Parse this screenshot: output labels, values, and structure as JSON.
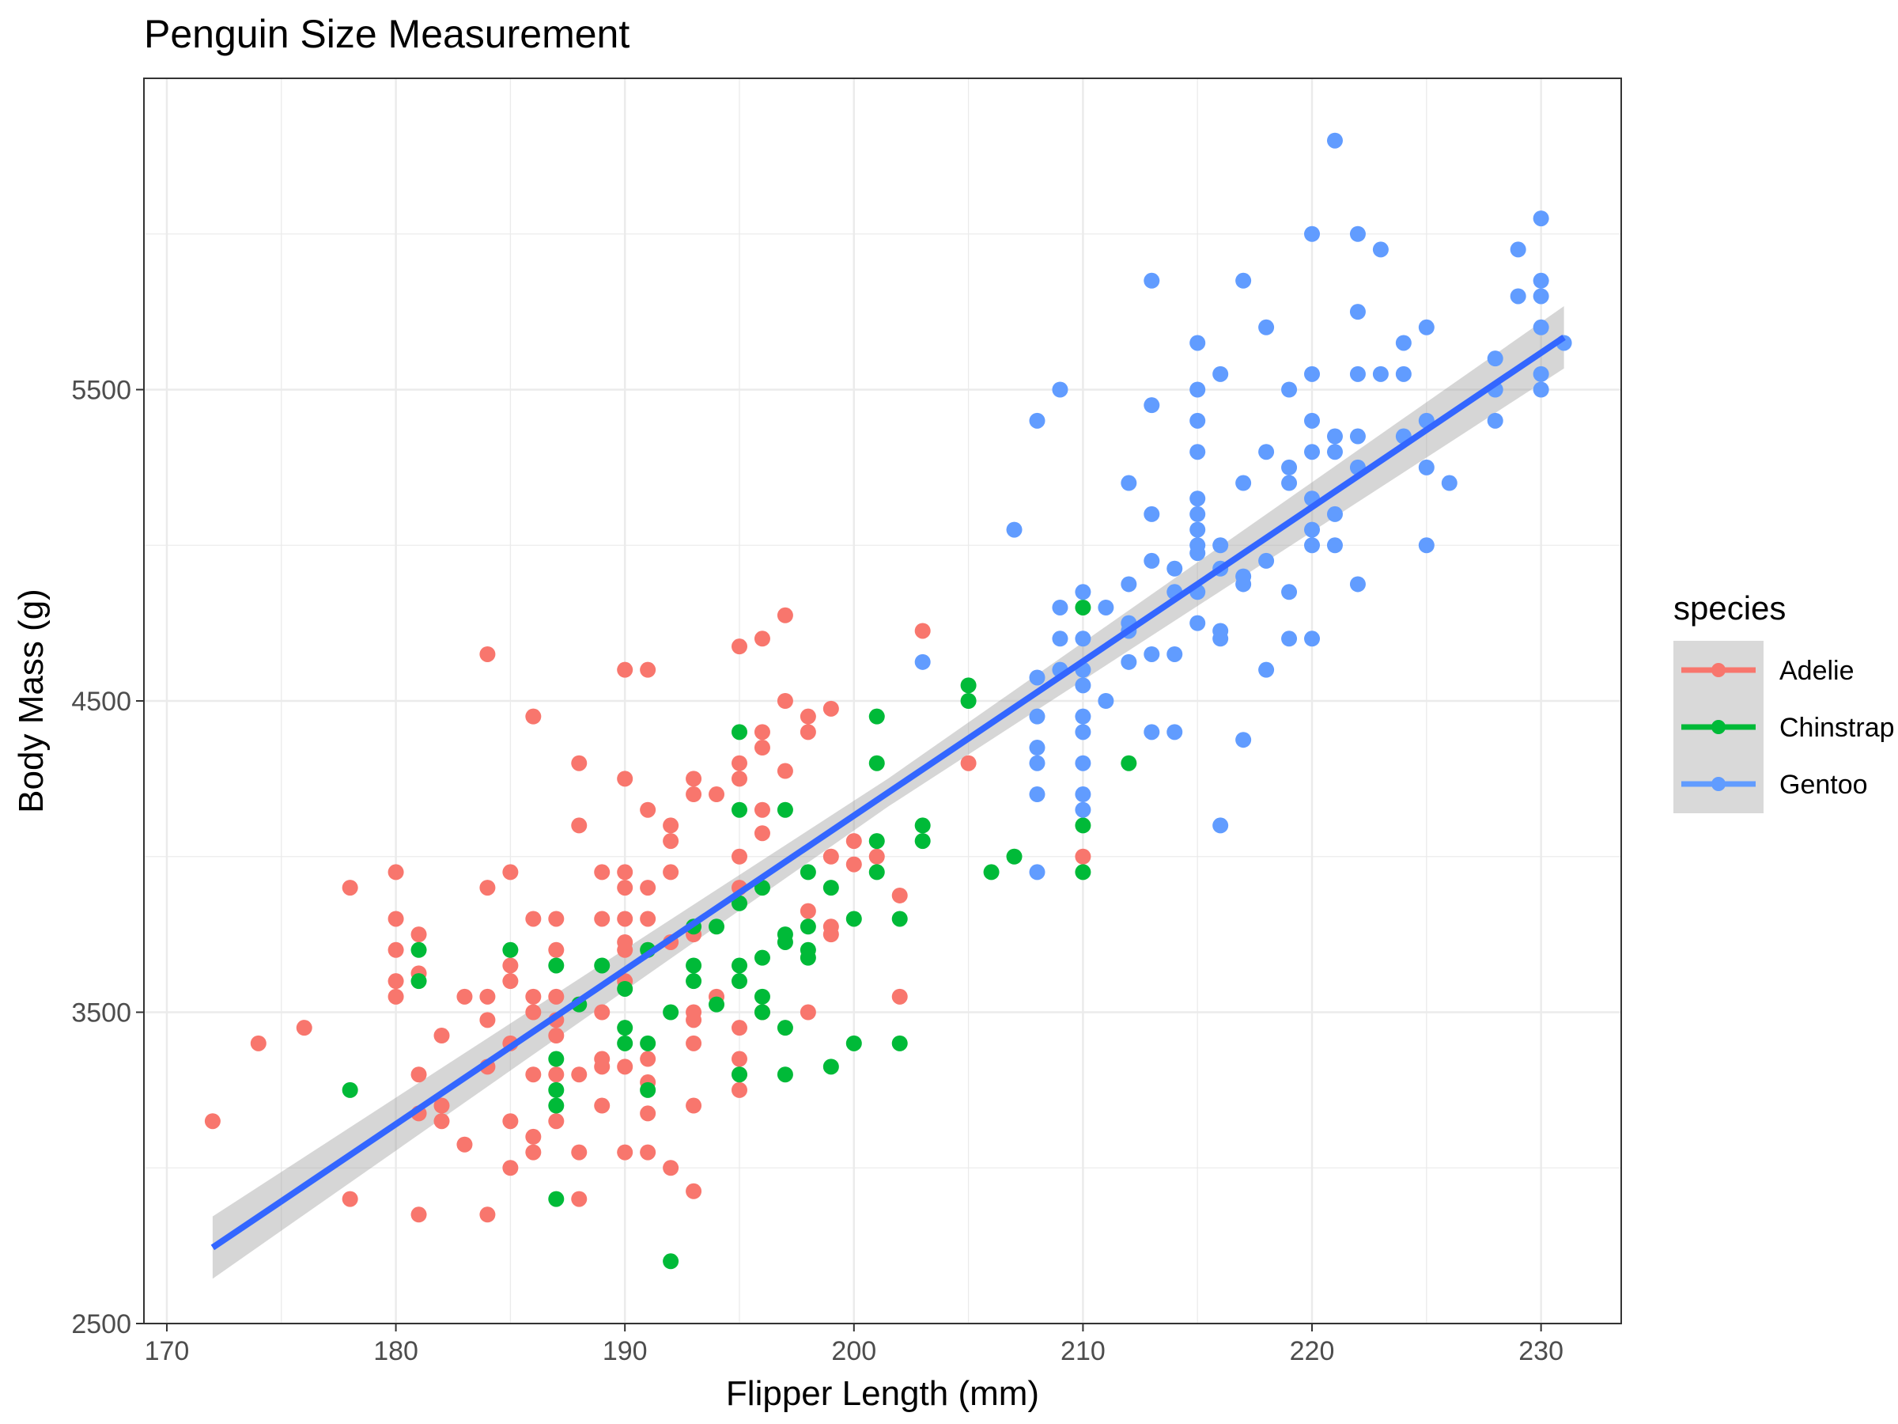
{
  "chart_data": {
    "type": "scatter",
    "title": "Penguin Size Measurement",
    "xlabel": "Flipper Length (mm)",
    "ylabel": "Body Mass (g)",
    "xlim": [
      169,
      233.5
    ],
    "ylim": [
      2500,
      6500
    ],
    "x_ticks": [
      170,
      180,
      190,
      200,
      210,
      220,
      230
    ],
    "y_ticks": [
      2500,
      3500,
      4500,
      5500
    ],
    "x_tick_labels": [
      "170",
      "180",
      "190",
      "200",
      "210",
      "220",
      "230"
    ],
    "y_tick_labels": [
      "2500",
      "3500",
      "4500",
      "5500"
    ],
    "grid": true,
    "legend": {
      "title": "species",
      "placement": "right"
    },
    "series": [
      {
        "name": "Adelie",
        "color": "#F8766D",
        "points": [
          [
            172,
            3150
          ],
          [
            174,
            3400
          ],
          [
            176,
            3450
          ],
          [
            178,
            2900
          ],
          [
            178,
            3900
          ],
          [
            180,
            3550
          ],
          [
            180,
            3600
          ],
          [
            180,
            3700
          ],
          [
            180,
            3800
          ],
          [
            180,
            3950
          ],
          [
            181,
            2850
          ],
          [
            181,
            3175
          ],
          [
            181,
            3300
          ],
          [
            181,
            3625
          ],
          [
            181,
            3750
          ],
          [
            182,
            3150
          ],
          [
            182,
            3200
          ],
          [
            182,
            3425
          ],
          [
            183,
            3075
          ],
          [
            183,
            3550
          ],
          [
            184,
            2850
          ],
          [
            184,
            3325
          ],
          [
            184,
            3475
          ],
          [
            184,
            3550
          ],
          [
            184,
            3900
          ],
          [
            184,
            4650
          ],
          [
            185,
            3000
          ],
          [
            185,
            3150
          ],
          [
            185,
            3400
          ],
          [
            185,
            3600
          ],
          [
            185,
            3650
          ],
          [
            185,
            3950
          ],
          [
            186,
            3050
          ],
          [
            186,
            3100
          ],
          [
            186,
            3300
          ],
          [
            186,
            3500
          ],
          [
            186,
            3550
          ],
          [
            186,
            3800
          ],
          [
            186,
            4450
          ],
          [
            187,
            3150
          ],
          [
            187,
            3300
          ],
          [
            187,
            3425
          ],
          [
            187,
            3475
          ],
          [
            187,
            3550
          ],
          [
            187,
            3700
          ],
          [
            187,
            3800
          ],
          [
            188,
            2900
          ],
          [
            188,
            3050
          ],
          [
            188,
            3300
          ],
          [
            188,
            4100
          ],
          [
            188,
            4300
          ],
          [
            189,
            3200
          ],
          [
            189,
            3325
          ],
          [
            189,
            3350
          ],
          [
            189,
            3500
          ],
          [
            189,
            3800
          ],
          [
            189,
            3950
          ],
          [
            190,
            3050
          ],
          [
            190,
            3325
          ],
          [
            190,
            3600
          ],
          [
            190,
            3700
          ],
          [
            190,
            3725
          ],
          [
            190,
            3800
          ],
          [
            190,
            3900
          ],
          [
            190,
            3950
          ],
          [
            190,
            4250
          ],
          [
            190,
            4600
          ],
          [
            191,
            3050
          ],
          [
            191,
            3175
          ],
          [
            191,
            3275
          ],
          [
            191,
            3350
          ],
          [
            191,
            3800
          ],
          [
            191,
            3900
          ],
          [
            191,
            4150
          ],
          [
            191,
            4600
          ],
          [
            192,
            3000
          ],
          [
            192,
            3725
          ],
          [
            192,
            3950
          ],
          [
            192,
            4050
          ],
          [
            192,
            4100
          ],
          [
            193,
            2925
          ],
          [
            193,
            3200
          ],
          [
            193,
            3400
          ],
          [
            193,
            3475
          ],
          [
            193,
            3500
          ],
          [
            193,
            3750
          ],
          [
            193,
            4200
          ],
          [
            193,
            4250
          ],
          [
            194,
            3550
          ],
          [
            194,
            4200
          ],
          [
            195,
            3250
          ],
          [
            195,
            3300
          ],
          [
            195,
            3350
          ],
          [
            195,
            3450
          ],
          [
            195,
            3900
          ],
          [
            195,
            4000
          ],
          [
            195,
            4250
          ],
          [
            195,
            4300
          ],
          [
            195,
            4675
          ],
          [
            196,
            3500
          ],
          [
            196,
            4075
          ],
          [
            196,
            4150
          ],
          [
            196,
            4350
          ],
          [
            196,
            4400
          ],
          [
            196,
            4700
          ],
          [
            197,
            4275
          ],
          [
            197,
            4500
          ],
          [
            197,
            4775
          ],
          [
            198,
            3500
          ],
          [
            198,
            3825
          ],
          [
            198,
            4400
          ],
          [
            198,
            4450
          ],
          [
            199,
            3750
          ],
          [
            199,
            3775
          ],
          [
            199,
            4000
          ],
          [
            199,
            4475
          ],
          [
            200,
            3975
          ],
          [
            200,
            4050
          ],
          [
            201,
            4000
          ],
          [
            202,
            3550
          ],
          [
            202,
            3875
          ],
          [
            203,
            4725
          ],
          [
            205,
            4300
          ],
          [
            210,
            4000
          ]
        ]
      },
      {
        "name": "Chinstrap",
        "color": "#00BA38",
        "points": [
          [
            178,
            3250
          ],
          [
            181,
            3600
          ],
          [
            181,
            3700
          ],
          [
            185,
            3700
          ],
          [
            187,
            2900
          ],
          [
            187,
            3200
          ],
          [
            187,
            3250
          ],
          [
            187,
            3350
          ],
          [
            187,
            3650
          ],
          [
            188,
            3525
          ],
          [
            189,
            3650
          ],
          [
            190,
            3400
          ],
          [
            190,
            3450
          ],
          [
            190,
            3575
          ],
          [
            191,
            3250
          ],
          [
            191,
            3400
          ],
          [
            191,
            3700
          ],
          [
            192,
            2700
          ],
          [
            192,
            3500
          ],
          [
            193,
            3600
          ],
          [
            193,
            3650
          ],
          [
            193,
            3775
          ],
          [
            194,
            3525
          ],
          [
            194,
            3775
          ],
          [
            195,
            3300
          ],
          [
            195,
            3600
          ],
          [
            195,
            3650
          ],
          [
            195,
            3850
          ],
          [
            195,
            4150
          ],
          [
            195,
            4400
          ],
          [
            196,
            3500
          ],
          [
            196,
            3550
          ],
          [
            196,
            3675
          ],
          [
            196,
            3900
          ],
          [
            197,
            3300
          ],
          [
            197,
            3450
          ],
          [
            197,
            3725
          ],
          [
            197,
            3750
          ],
          [
            197,
            4150
          ],
          [
            198,
            3675
          ],
          [
            198,
            3700
          ],
          [
            198,
            3775
          ],
          [
            198,
            3950
          ],
          [
            199,
            3325
          ],
          [
            199,
            3900
          ],
          [
            200,
            3400
          ],
          [
            200,
            3800
          ],
          [
            201,
            3950
          ],
          [
            201,
            4050
          ],
          [
            201,
            4300
          ],
          [
            201,
            4450
          ],
          [
            202,
            3400
          ],
          [
            202,
            3800
          ],
          [
            203,
            4050
          ],
          [
            203,
            4100
          ],
          [
            205,
            4500
          ],
          [
            205,
            4550
          ],
          [
            206,
            3950
          ],
          [
            207,
            4000
          ],
          [
            210,
            3950
          ],
          [
            210,
            4100
          ],
          [
            210,
            4800
          ],
          [
            212,
            4300
          ]
        ]
      },
      {
        "name": "Gentoo",
        "color": "#619CFF",
        "points": [
          [
            203,
            4625
          ],
          [
            207,
            5050
          ],
          [
            208,
            3950
          ],
          [
            208,
            4200
          ],
          [
            208,
            4300
          ],
          [
            208,
            4350
          ],
          [
            208,
            4450
          ],
          [
            208,
            4575
          ],
          [
            208,
            5400
          ],
          [
            209,
            4600
          ],
          [
            209,
            4700
          ],
          [
            209,
            4800
          ],
          [
            209,
            5500
          ],
          [
            210,
            4150
          ],
          [
            210,
            4200
          ],
          [
            210,
            4300
          ],
          [
            210,
            4400
          ],
          [
            210,
            4450
          ],
          [
            210,
            4550
          ],
          [
            210,
            4600
          ],
          [
            210,
            4700
          ],
          [
            210,
            4850
          ],
          [
            211,
            4500
          ],
          [
            211,
            4800
          ],
          [
            212,
            4625
          ],
          [
            212,
            4725
          ],
          [
            212,
            4750
          ],
          [
            212,
            4875
          ],
          [
            212,
            5200
          ],
          [
            213,
            4400
          ],
          [
            213,
            4650
          ],
          [
            213,
            4950
          ],
          [
            213,
            5100
          ],
          [
            213,
            5450
          ],
          [
            213,
            5850
          ],
          [
            214,
            4400
          ],
          [
            214,
            4650
          ],
          [
            214,
            4850
          ],
          [
            214,
            4925
          ],
          [
            215,
            4750
          ],
          [
            215,
            4850
          ],
          [
            215,
            4975
          ],
          [
            215,
            5000
          ],
          [
            215,
            5050
          ],
          [
            215,
            5100
          ],
          [
            215,
            5150
          ],
          [
            215,
            5300
          ],
          [
            215,
            5400
          ],
          [
            215,
            5500
          ],
          [
            215,
            5650
          ],
          [
            216,
            4100
          ],
          [
            216,
            4700
          ],
          [
            216,
            4725
          ],
          [
            216,
            4925
          ],
          [
            216,
            5000
          ],
          [
            216,
            5550
          ],
          [
            217,
            4375
          ],
          [
            217,
            4875
          ],
          [
            217,
            4900
          ],
          [
            217,
            5200
          ],
          [
            217,
            5850
          ],
          [
            218,
            4600
          ],
          [
            218,
            4950
          ],
          [
            218,
            5300
          ],
          [
            218,
            5700
          ],
          [
            219,
            4700
          ],
          [
            219,
            4850
          ],
          [
            219,
            5200
          ],
          [
            219,
            5250
          ],
          [
            219,
            5500
          ],
          [
            220,
            4700
          ],
          [
            220,
            5000
          ],
          [
            220,
            5050
          ],
          [
            220,
            5150
          ],
          [
            220,
            5300
          ],
          [
            220,
            5400
          ],
          [
            220,
            5550
          ],
          [
            220,
            6000
          ],
          [
            221,
            5000
          ],
          [
            221,
            5100
          ],
          [
            221,
            5300
          ],
          [
            221,
            5350
          ],
          [
            221,
            6300
          ],
          [
            222,
            4875
          ],
          [
            222,
            5250
          ],
          [
            222,
            5350
          ],
          [
            222,
            5550
          ],
          [
            222,
            5750
          ],
          [
            222,
            6000
          ],
          [
            223,
            5550
          ],
          [
            223,
            5950
          ],
          [
            224,
            5350
          ],
          [
            224,
            5550
          ],
          [
            224,
            5650
          ],
          [
            225,
            5000
          ],
          [
            225,
            5250
          ],
          [
            225,
            5400
          ],
          [
            225,
            5700
          ],
          [
            226,
            5200
          ],
          [
            228,
            5400
          ],
          [
            228,
            5500
          ],
          [
            228,
            5600
          ],
          [
            229,
            5800
          ],
          [
            229,
            5950
          ],
          [
            230,
            5500
          ],
          [
            230,
            5550
          ],
          [
            230,
            5700
          ],
          [
            230,
            5800
          ],
          [
            230,
            5850
          ],
          [
            230,
            6050
          ],
          [
            231,
            5650
          ]
        ]
      }
    ],
    "trendline": {
      "x": [
        172,
        231
      ],
      "y": [
        2744,
        5668
      ],
      "band": 100,
      "color": "#3366FF"
    }
  }
}
